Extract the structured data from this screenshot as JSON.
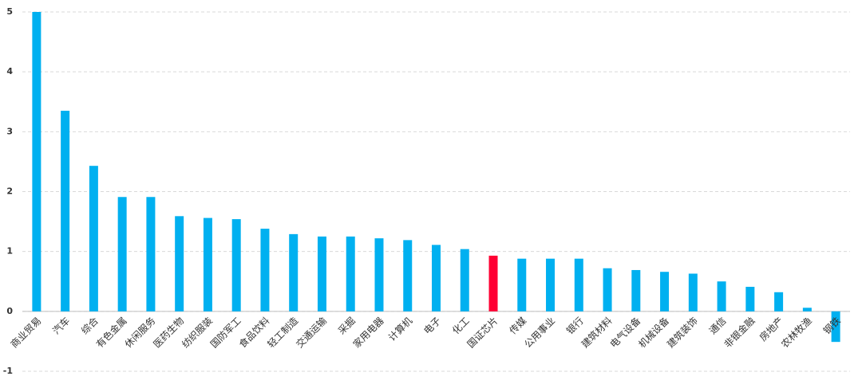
{
  "chart_data": {
    "type": "bar",
    "categories": [
      "商业贸易",
      "汽车",
      "综合",
      "有色金属",
      "休闲服务",
      "医药生物",
      "纺织服装",
      "国防军工",
      "食品饮料",
      "轻工制造",
      "交通运输",
      "采掘",
      "家用电器",
      "计算机",
      "电子",
      "化工",
      "国证芯片",
      "传媒",
      "公用事业",
      "银行",
      "建筑材料",
      "电气设备",
      "机械设备",
      "建筑装饰",
      "通信",
      "非银金融",
      "房地产",
      "农林牧渔",
      "钢铁"
    ],
    "values": [
      5.0,
      3.35,
      2.43,
      1.91,
      1.91,
      1.59,
      1.56,
      1.54,
      1.38,
      1.29,
      1.25,
      1.25,
      1.22,
      1.19,
      1.11,
      1.04,
      0.93,
      0.88,
      0.88,
      0.88,
      0.72,
      0.69,
      0.66,
      0.63,
      0.5,
      0.41,
      0.32,
      0.06,
      -0.51
    ],
    "colors": [
      "#00b0f0",
      "#00b0f0",
      "#00b0f0",
      "#00b0f0",
      "#00b0f0",
      "#00b0f0",
      "#00b0f0",
      "#00b0f0",
      "#00b0f0",
      "#00b0f0",
      "#00b0f0",
      "#00b0f0",
      "#00b0f0",
      "#00b0f0",
      "#00b0f0",
      "#00b0f0",
      "#ff0033",
      "#00b0f0",
      "#00b0f0",
      "#00b0f0",
      "#00b0f0",
      "#00b0f0",
      "#00b0f0",
      "#00b0f0",
      "#00b0f0",
      "#00b0f0",
      "#00b0f0",
      "#00b0f0",
      "#00b0f0"
    ],
    "ylim": [
      -1,
      5
    ],
    "yticks": [
      -1,
      0,
      1,
      2,
      3,
      4,
      5
    ],
    "grid": true
  }
}
